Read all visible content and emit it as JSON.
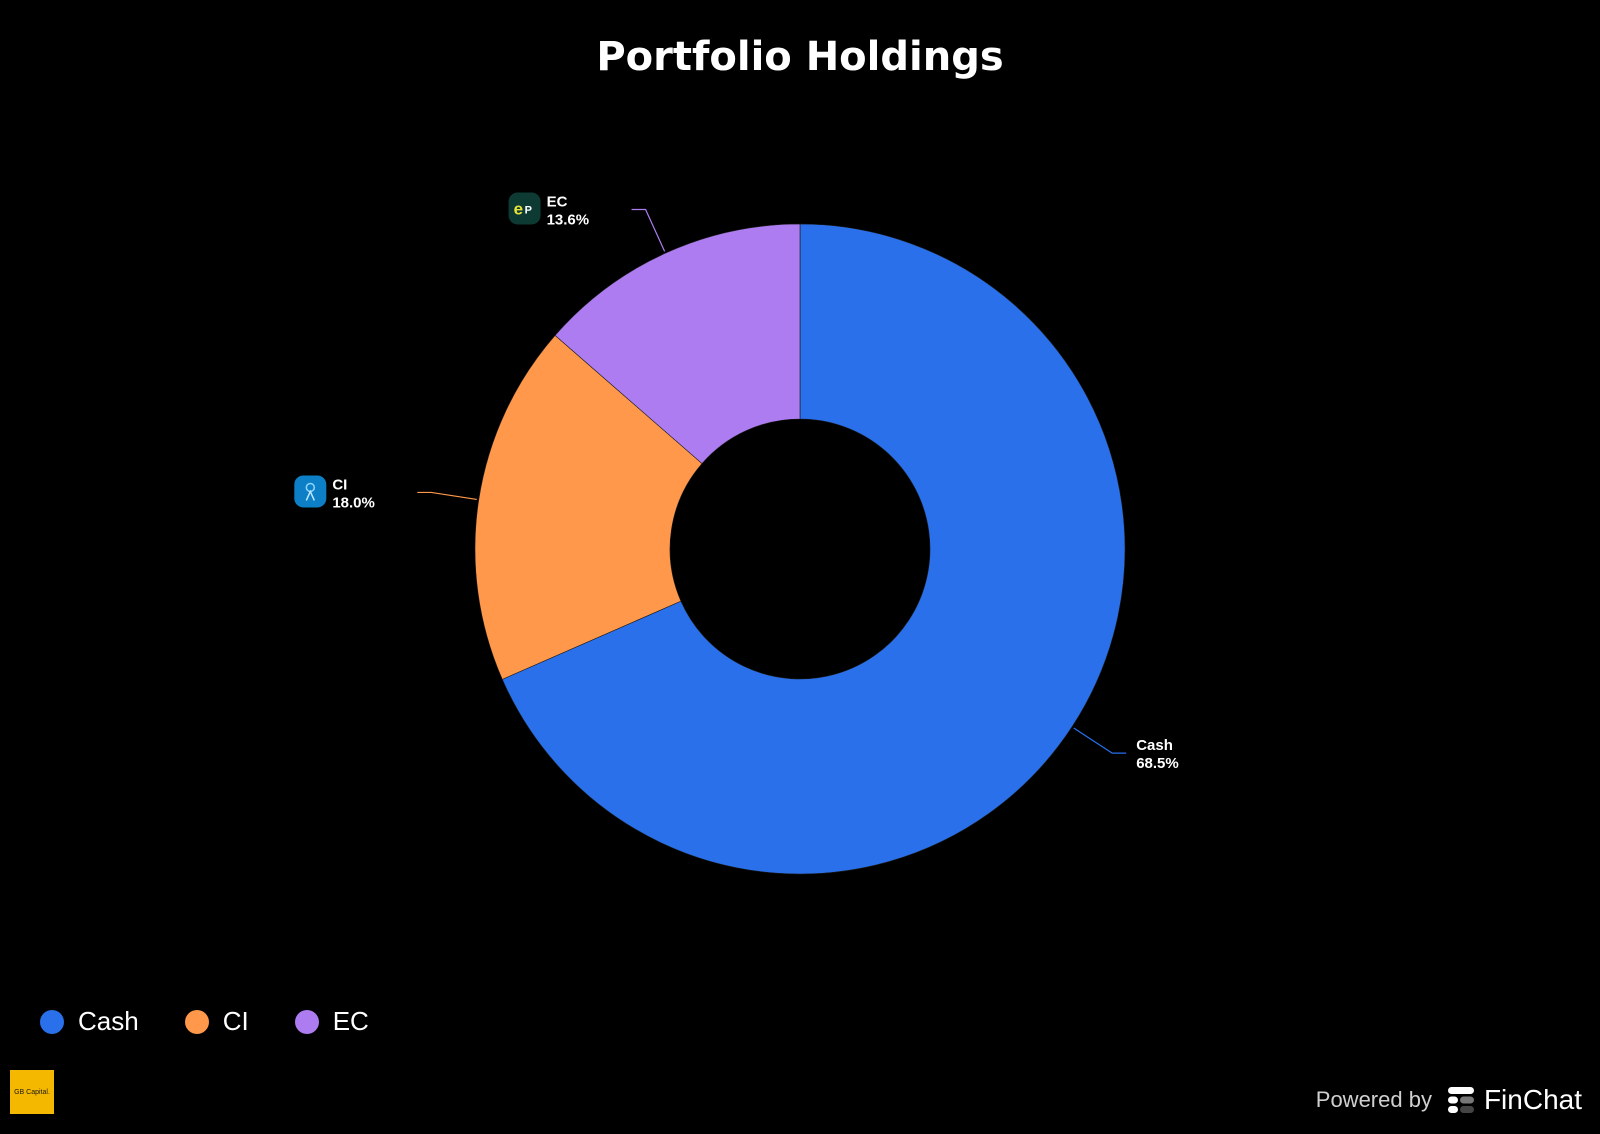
{
  "chart_data": {
    "type": "pie",
    "donut": true,
    "title": "Portfolio Holdings",
    "slices": [
      {
        "label": "Cash",
        "value": 68.5,
        "value_label": "68.5%",
        "color": "#2970ea",
        "icon": null
      },
      {
        "label": "CI",
        "value": 18.0,
        "value_label": "18.0%",
        "color": "#ff984a",
        "icon": "ci-logo-icon"
      },
      {
        "label": "EC",
        "value": 13.6,
        "value_label": "13.6%",
        "color": "#ad7cf0",
        "icon": "ep-logo-icon"
      }
    ],
    "legend": {
      "position": "bottom-left",
      "items": [
        "Cash",
        "CI",
        "EC"
      ]
    }
  },
  "branding": {
    "logo_text": "GB Capital.",
    "powered_by": "Powered by",
    "product_name": "FinChat"
  },
  "colors": {
    "background": "#000000",
    "logo_bg": "#f5b800"
  }
}
